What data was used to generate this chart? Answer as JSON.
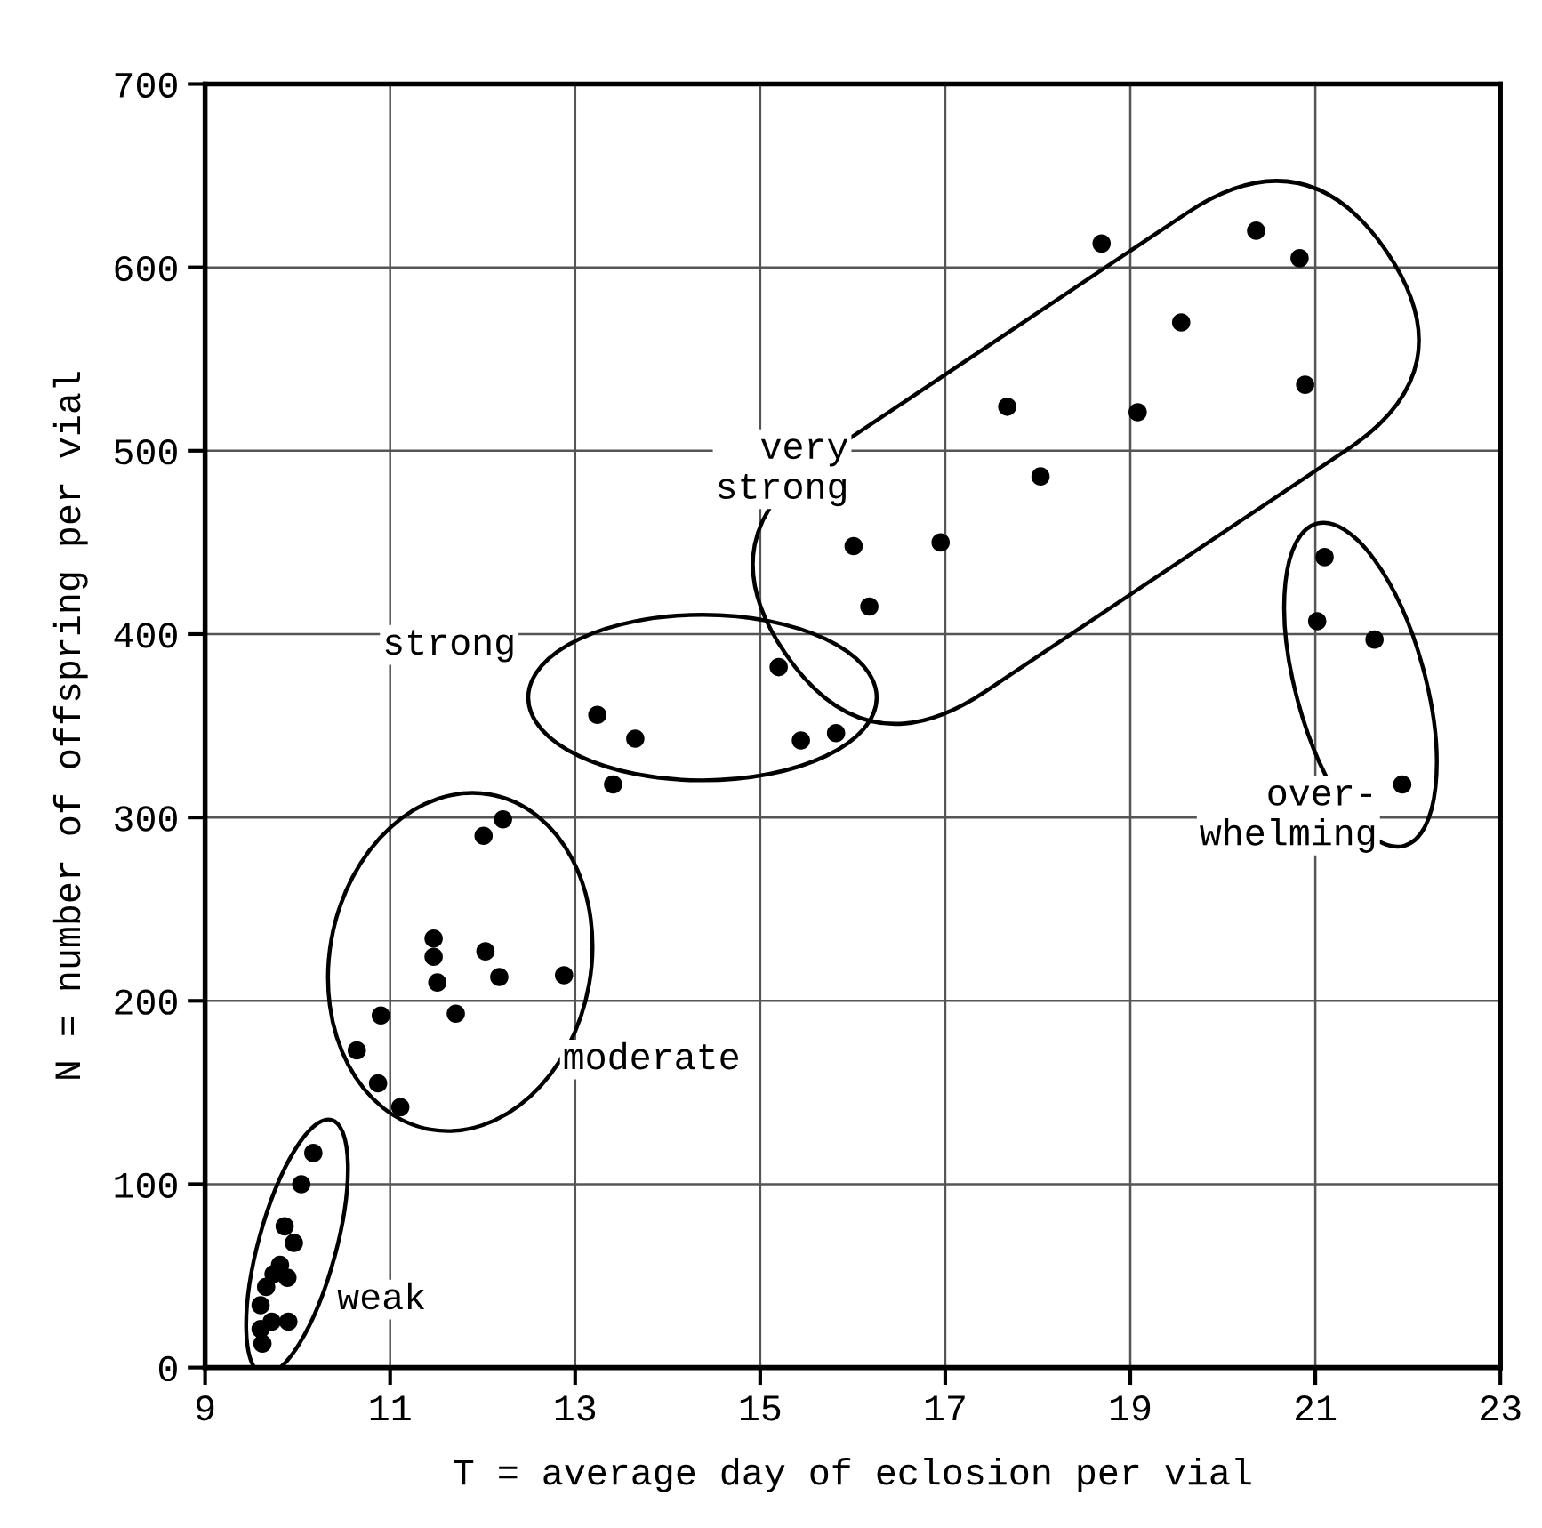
{
  "chart_data": {
    "type": "scatter",
    "xlabel": "T = average day of eclosion per vial",
    "ylabel": "N = number of offspring per vial",
    "xlim": [
      9,
      23
    ],
    "ylim": [
      0,
      700
    ],
    "xticks": [
      9,
      11,
      13,
      15,
      17,
      19,
      21,
      23
    ],
    "yticks": [
      0,
      100,
      200,
      300,
      400,
      500,
      600,
      700
    ],
    "grid": true,
    "marker": "circle",
    "annotations": [
      "weak",
      "moderate",
      "strong",
      "very\nstrong",
      "over-\nwhelming"
    ],
    "series": [
      {
        "color": "#000000",
        "x": [
          10.17,
          10.04,
          9.86,
          9.96,
          9.81,
          9.74,
          9.89,
          9.66,
          9.6,
          9.9,
          9.6,
          9.72,
          9.62,
          12.22,
          12.01,
          11.47,
          11.47,
          12.03,
          11.51,
          12.18,
          12.88,
          10.9,
          11.71,
          10.64,
          10.87,
          11.11,
          15.2,
          13.24,
          13.65,
          15.44,
          15.82,
          13.41,
          18.69,
          20.36,
          20.83,
          19.55,
          20.89,
          17.67,
          19.08,
          18.03,
          16.01,
          16.95,
          16.18,
          21.1,
          21.02,
          21.64,
          21.94
        ],
        "values": [
          117,
          100,
          77,
          68,
          56,
          51,
          49,
          44,
          34,
          25,
          21,
          25,
          13,
          299,
          290,
          234,
          224,
          227,
          210,
          213,
          214,
          192,
          193,
          173,
          155,
          142,
          382,
          356,
          343,
          342,
          346,
          318,
          613,
          620,
          605,
          570,
          536,
          524,
          521,
          486,
          448,
          450,
          415,
          442,
          407,
          397,
          318
        ]
      }
    ]
  }
}
